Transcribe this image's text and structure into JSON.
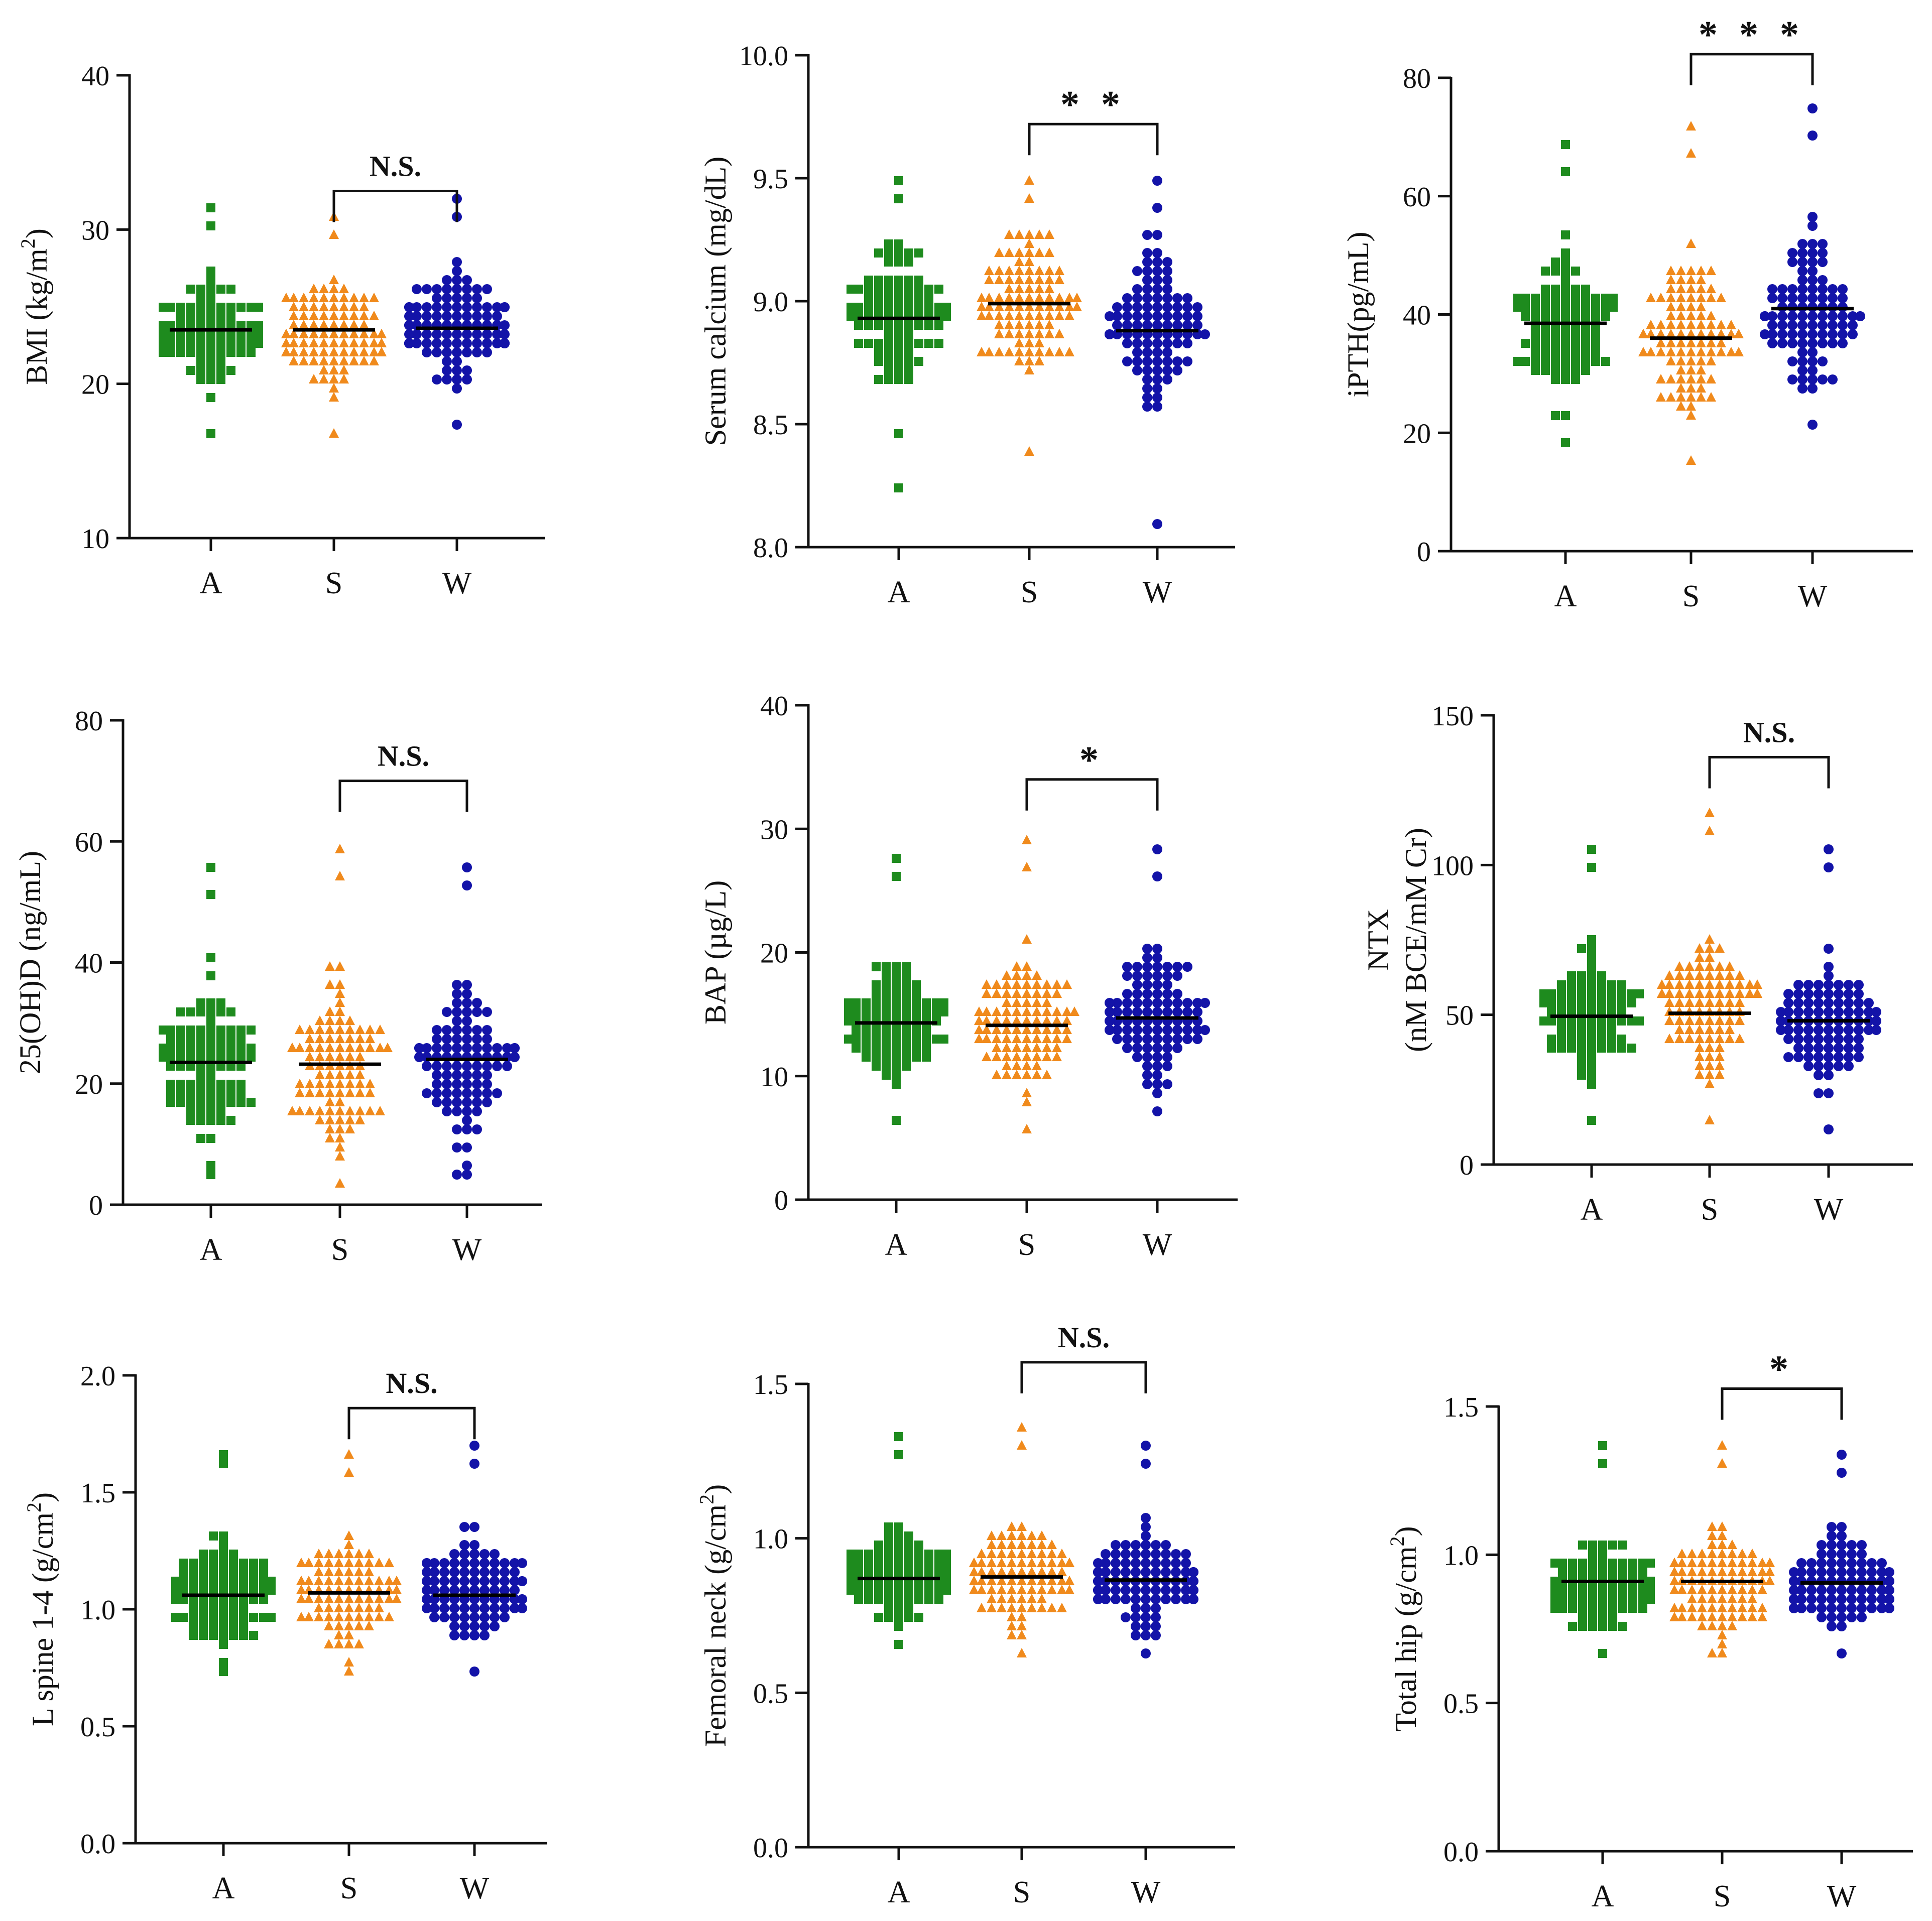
{
  "colors": {
    "A": "#1e8b1e",
    "S": "#f08a1c",
    "W": "#1313a8",
    "axis": "#111111",
    "mean": "#000000"
  },
  "chart_data": [
    {
      "type": "scatter",
      "kind": "dot-plot",
      "ylabel": "BMI (kg/m",
      "ylabel_sup": "2",
      "ylabel_tail": ")",
      "ylim": [
        10,
        40
      ],
      "yticks": [
        10,
        20,
        30,
        40
      ],
      "ytick_labels": [
        "10",
        "20",
        "30",
        "40"
      ],
      "categories": [
        "A",
        "S",
        "W"
      ],
      "means": [
        23.5,
        23.5,
        23.6
      ],
      "spread": [
        [
          17,
          31.6
        ],
        [
          16.7,
          31
        ],
        [
          17.3,
          32.1
        ]
      ],
      "bracket": [
        "S",
        "W"
      ],
      "bracket_y": 32.5,
      "sig": "N.S."
    },
    {
      "type": "scatter",
      "kind": "dot-plot",
      "ylabel": "Serum calcium (mg/dL)",
      "ylim": [
        8.0,
        10.0
      ],
      "yticks": [
        8.0,
        8.5,
        9.0,
        9.5,
        10.0
      ],
      "ytick_labels": [
        "8.0",
        "8.5",
        "9.0",
        "9.5",
        "10.0"
      ],
      "categories": [
        "A",
        "S",
        "W"
      ],
      "means": [
        8.93,
        8.99,
        8.88
      ],
      "spread": [
        [
          8.25,
          9.5
        ],
        [
          8.4,
          9.5
        ],
        [
          8.1,
          9.5
        ]
      ],
      "bracket": [
        "S",
        "W"
      ],
      "bracket_y": 9.72,
      "sig": "* *"
    },
    {
      "type": "scatter",
      "kind": "dot-plot",
      "ylabel": "iPTH(pg/mL)",
      "ylim": [
        0,
        80
      ],
      "yticks": [
        0,
        20,
        40,
        60,
        80
      ],
      "ytick_labels": [
        "0",
        "20",
        "40",
        "60",
        "80"
      ],
      "categories": [
        "A",
        "S",
        "W"
      ],
      "means": [
        38.5,
        36,
        41
      ],
      "spread": [
        [
          18,
          68
        ],
        [
          15,
          72
        ],
        [
          21,
          75
        ]
      ],
      "bracket": [
        "S",
        "W"
      ],
      "bracket_y": 84,
      "sig": "* * *"
    },
    {
      "type": "scatter",
      "kind": "dot-plot",
      "ylabel": "25(OH)D (ng/mL)",
      "ylim": [
        0,
        80
      ],
      "yticks": [
        0,
        20,
        40,
        60,
        80
      ],
      "ytick_labels": [
        "0",
        "20",
        "40",
        "60",
        "80"
      ],
      "categories": [
        "A",
        "S",
        "W"
      ],
      "means": [
        23.5,
        23.2,
        24
      ],
      "spread": [
        [
          4.5,
          55.5
        ],
        [
          3.5,
          59
        ],
        [
          5,
          56
        ]
      ],
      "bracket": [
        "S",
        "W"
      ],
      "bracket_y": 70,
      "sig": "N.S."
    },
    {
      "type": "scatter",
      "kind": "dot-plot",
      "ylabel": "BAP (µg/L)",
      "ylim": [
        0,
        40
      ],
      "yticks": [
        0,
        10,
        20,
        30,
        40
      ],
      "ytick_labels": [
        "0",
        "10",
        "20",
        "30",
        "40"
      ],
      "categories": [
        "A",
        "S",
        "W"
      ],
      "means": [
        14.3,
        14.1,
        14.7
      ],
      "spread": [
        [
          6.5,
          27.5
        ],
        [
          6,
          29
        ],
        [
          7,
          28
        ]
      ],
      "bracket": [
        "S",
        "W"
      ],
      "bracket_y": 34,
      "sig": "*"
    },
    {
      "type": "scatter",
      "kind": "dot-plot",
      "ylabel": "NTX",
      "ylabel2": "(nM BCE/mM Cr)",
      "ylim": [
        0,
        150
      ],
      "yticks": [
        0,
        50,
        100,
        150
      ],
      "ytick_labels": [
        "0",
        "50",
        "100",
        "150"
      ],
      "categories": [
        "A",
        "S",
        "W"
      ],
      "means": [
        49.5,
        50.5,
        48
      ],
      "spread": [
        [
          14,
          106
        ],
        [
          15,
          118
        ],
        [
          13,
          106
        ]
      ],
      "bracket": [
        "S",
        "W"
      ],
      "bracket_y": 136,
      "sig": "N.S."
    },
    {
      "type": "scatter",
      "kind": "dot-plot",
      "ylabel": "L spine 1-4 (g/cm",
      "ylabel_sup": "2",
      "ylabel_tail": ")",
      "ylim": [
        0.0,
        2.0
      ],
      "yticks": [
        0.0,
        0.5,
        1.0,
        1.5,
        2.0
      ],
      "ytick_labels": [
        "0.0",
        "0.5",
        "1.0",
        "1.5",
        "2.0"
      ],
      "categories": [
        "A",
        "S",
        "W"
      ],
      "means": [
        1.06,
        1.07,
        1.06
      ],
      "spread": [
        [
          0.74,
          1.68
        ],
        [
          0.75,
          1.67
        ],
        [
          0.72,
          1.7
        ]
      ],
      "bracket": [
        "S",
        "W"
      ],
      "bracket_y": 1.86,
      "sig": "N.S."
    },
    {
      "type": "scatter",
      "kind": "dot-plot",
      "ylabel": "Femoral neck (g/cm",
      "ylabel_sup": "2",
      "ylabel_tail": ")",
      "ylim": [
        0.0,
        1.5
      ],
      "yticks": [
        0.0,
        0.5,
        1.0,
        1.5
      ],
      "ytick_labels": [
        "0.0",
        "0.5",
        "1.0",
        "1.5"
      ],
      "categories": [
        "A",
        "S",
        "W"
      ],
      "means": [
        0.87,
        0.875,
        0.865
      ],
      "spread": [
        [
          0.65,
          1.33
        ],
        [
          0.64,
          1.37
        ],
        [
          0.64,
          1.29
        ]
      ],
      "bracket": [
        "S",
        "W"
      ],
      "bracket_y": 1.57,
      "sig": "N.S."
    },
    {
      "type": "scatter",
      "kind": "dot-plot",
      "ylabel": "Total hip (g/cm",
      "ylabel_sup": "2",
      "ylabel_tail": ")",
      "ylim": [
        0.0,
        1.5
      ],
      "yticks": [
        0.0,
        0.5,
        1.0,
        1.5
      ],
      "ytick_labels": [
        "0.0",
        "0.5",
        "1.0",
        "1.5"
      ],
      "categories": [
        "A",
        "S",
        "W"
      ],
      "means": [
        0.91,
        0.91,
        0.905
      ],
      "spread": [
        [
          0.67,
          1.36
        ],
        [
          0.66,
          1.37
        ],
        [
          0.66,
          1.34
        ]
      ],
      "bracket": [
        "S",
        "W"
      ],
      "bracket_y": 1.56,
      "sig": "*"
    }
  ]
}
